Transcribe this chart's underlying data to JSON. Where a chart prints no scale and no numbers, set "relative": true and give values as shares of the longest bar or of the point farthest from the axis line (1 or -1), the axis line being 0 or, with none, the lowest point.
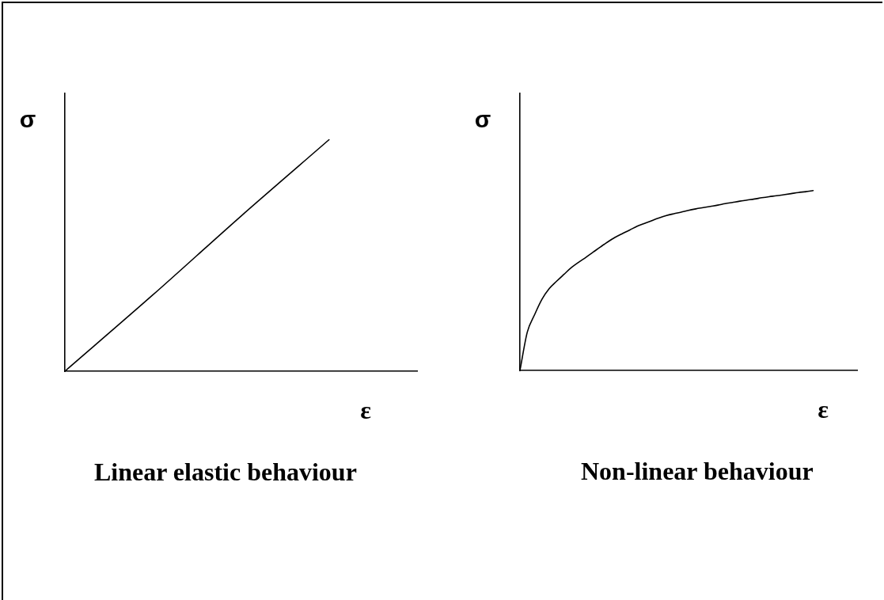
{
  "chart_data": [
    {
      "type": "line",
      "title": "Linear elastic behaviour",
      "xlabel": "ε",
      "ylabel": "σ",
      "categories": [
        null,
        null,
        null,
        null,
        null
      ],
      "values": [
        0,
        0.33,
        0.67,
        1,
        null
      ],
      "color": "#000000",
      "relative": true,
      "marker": "none"
    },
    {
      "type": "line",
      "title": "Non-linear behaviour",
      "xlabel": "ε",
      "ylabel": "σ",
      "categories": [
        null,
        null,
        null,
        null,
        null,
        null,
        null,
        null,
        null,
        null,
        null,
        null,
        null,
        null,
        null,
        null,
        null,
        null,
        null,
        null,
        null,
        null,
        null,
        null,
        null,
        null,
        null,
        null,
        null,
        null,
        null,
        null,
        null,
        null,
        null,
        null,
        null,
        null,
        null,
        null,
        null,
        null,
        null,
        null,
        null,
        null,
        null
      ],
      "values": [
        0,
        0.213,
        0.31,
        0.395,
        0.455,
        0.496,
        0.534,
        0.571,
        0.601,
        0.629,
        0.658,
        0.687,
        0.715,
        0.74,
        0.761,
        0.781,
        0.802,
        0.817,
        0.833,
        0.848,
        0.861,
        0.871,
        0.88,
        0.89,
        0.898,
        0.905,
        0.912,
        0.919,
        0.927,
        0.934,
        0.941,
        0.947,
        0.953,
        0.96,
        0.966,
        0.971,
        0.977,
        0.983,
        0.989,
        0.994,
        1,
        null,
        null,
        null,
        null,
        null,
        null
      ],
      "color": "#000000",
      "relative": true,
      "marker": "none"
    }
  ]
}
